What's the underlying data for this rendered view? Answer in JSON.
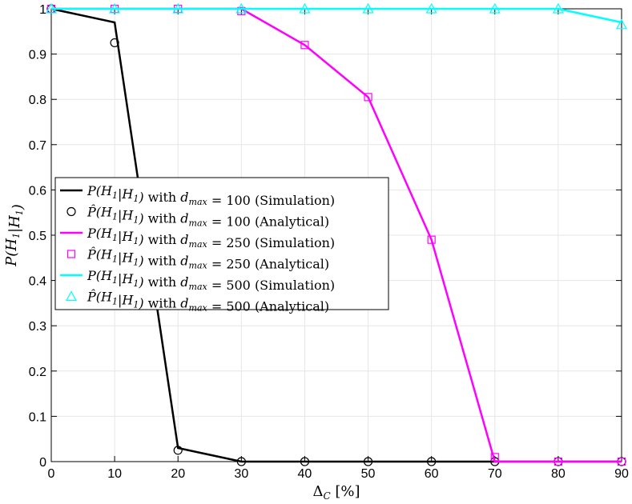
{
  "chart_data": {
    "type": "line",
    "title": "",
    "xlabel": "Δ_C [%]",
    "ylabel": "P(H_1|H_1)",
    "xlim": [
      0,
      90
    ],
    "ylim": [
      0,
      1
    ],
    "xticks": [
      0,
      10,
      20,
      30,
      40,
      50,
      60,
      70,
      80,
      90
    ],
    "yticks": [
      0,
      0.1,
      0.2,
      0.3,
      0.4,
      0.5,
      0.6,
      0.7,
      0.8,
      0.9,
      1
    ],
    "ytick_labels": [
      "0",
      "0.1",
      "0.2",
      "0.3",
      "0.4",
      "0.5",
      "0.6",
      "0.7",
      "0.8",
      "0.9",
      "1"
    ],
    "grid": true,
    "legend_position": "left",
    "x": [
      0,
      10,
      20,
      30,
      40,
      50,
      60,
      70,
      80,
      90
    ],
    "series": [
      {
        "name": "P(H_1|H_1) with d_max = 100 (Simulation)",
        "kind": "line",
        "color": "#000000",
        "values": [
          1.0,
          0.97,
          0.03,
          0,
          0,
          0,
          0,
          0,
          0,
          0
        ]
      },
      {
        "name": "P̂(H_1|H_1) with d_max = 100 (Analytical)",
        "kind": "marker",
        "marker": "circle",
        "color": "#000000",
        "values": [
          1.0,
          0.925,
          0.025,
          0,
          0,
          0,
          0,
          0,
          0,
          0
        ]
      },
      {
        "name": "P(H_1|H_1) with d_max = 250 (Simulation)",
        "kind": "line",
        "color": "#ff00ff",
        "values": [
          1.0,
          1.0,
          1.0,
          1.0,
          0.92,
          0.805,
          0.49,
          0.0,
          0,
          0
        ]
      },
      {
        "name": "P̂(H_1|H_1) with d_max = 250 (Analytical)",
        "kind": "marker",
        "marker": "square",
        "color": "#ff00ff",
        "values": [
          1.0,
          1.0,
          1.0,
          0.995,
          0.92,
          0.805,
          0.49,
          0.01,
          0,
          0
        ]
      },
      {
        "name": "P(H_1|H_1) with d_max = 500 (Simulation)",
        "kind": "line",
        "color": "#00ffff",
        "values": [
          1.0,
          1.0,
          1.0,
          1.0,
          1.0,
          1.0,
          1.0,
          1.0,
          1.0,
          0.97
        ]
      },
      {
        "name": "P̂(H_1|H_1) with d_max = 500 (Analytical)",
        "kind": "marker",
        "marker": "triangle",
        "color": "#00ffff",
        "values": [
          1.0,
          1.0,
          1.0,
          1.0,
          1.0,
          1.0,
          1.0,
          1.0,
          1.0,
          0.965
        ]
      }
    ]
  }
}
